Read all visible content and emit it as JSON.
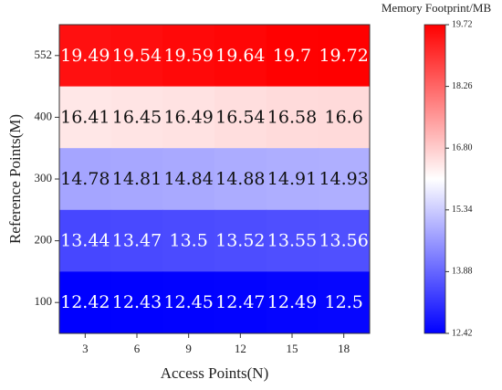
{
  "chart_data": {
    "type": "heatmap",
    "xlabel": "Access Points(N)",
    "ylabel": "Reference Points(M)",
    "colorbar_label": "Memory Footprint/MB",
    "x": [
      "3",
      "6",
      "9",
      "12",
      "15",
      "18"
    ],
    "y": [
      "552",
      "400",
      "300",
      "200",
      "100"
    ],
    "values": [
      [
        19.49,
        19.54,
        19.59,
        19.64,
        19.7,
        19.72
      ],
      [
        16.41,
        16.45,
        16.49,
        16.54,
        16.58,
        16.6
      ],
      [
        14.78,
        14.81,
        14.84,
        14.88,
        14.91,
        14.93
      ],
      [
        13.44,
        13.47,
        13.5,
        13.52,
        13.55,
        13.56
      ],
      [
        12.42,
        12.43,
        12.45,
        12.47,
        12.49,
        12.5
      ]
    ],
    "colormap": [
      "#0000ff",
      "#ffffff",
      "#ff0000"
    ],
    "clim": [
      12.42,
      19.72
    ],
    "cticks": [
      12.42,
      13.88,
      15.34,
      {
        "value": 16.8,
        "label": "16.80"
      },
      18.26,
      19.72
    ]
  }
}
